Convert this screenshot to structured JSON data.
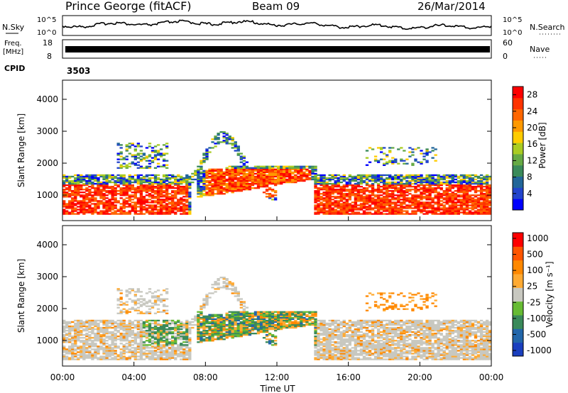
{
  "header": {
    "station": "Prince George (fitACF)",
    "beam": "Beam 09",
    "date": "26/Mar/2014"
  },
  "panels": {
    "sky_label": "N.Sky",
    "search_label": "N.Search",
    "freq_label_1": "Freq.",
    "freq_label_2": "[MHz]",
    "nave_label": "Nave",
    "cpid_label": "CPID",
    "cpid_value": "3503",
    "sky_ticks_left": [
      "10^5",
      "10^0"
    ],
    "sky_ticks_right": [
      "10^5",
      "10^0"
    ],
    "freq_ticks_left": [
      "18",
      "8"
    ],
    "nave_ticks_right": [
      "60",
      "0"
    ]
  },
  "colors": {
    "power": [
      "#0000ff",
      "#2244cc",
      "#226699",
      "#3a8a5a",
      "#66aa44",
      "#aacc22",
      "#ffcc00",
      "#ff9900",
      "#ff6600",
      "#ff3300",
      "#ff0000"
    ],
    "velocity": [
      "#1a3fbf",
      "#2266aa",
      "#3a8a5a",
      "#66bb33",
      "#c8c8c0",
      "#ffaa33",
      "#ff8800",
      "#ff5500",
      "#ff0000"
    ]
  },
  "chart_data": [
    {
      "type": "heatmap",
      "title": "Power",
      "ylabel": "Slant Range [km]",
      "yticks": [
        "1000",
        "2000",
        "3000",
        "4000"
      ],
      "ylim": [
        200,
        4600
      ],
      "colorbar_label": "Power [dB]",
      "colorbar_ticks": [
        "4",
        "8",
        "12",
        "16",
        "20",
        "24",
        "28"
      ],
      "colorbar_range": [
        0,
        30
      ]
    },
    {
      "type": "heatmap",
      "title": "Velocity",
      "ylabel": "Slant Range [km]",
      "yticks": [
        "1000",
        "2000",
        "3000",
        "4000"
      ],
      "ylim": [
        200,
        4600
      ],
      "colorbar_label": "Velocity [m s⁻¹]",
      "colorbar_ticks": [
        "1000",
        "500",
        "100",
        "25",
        "-25",
        "-100",
        "-500",
        "-1000"
      ],
      "xlabel": "Time UT",
      "xticks": [
        "00:00",
        "04:00",
        "08:00",
        "12:00",
        "16:00",
        "20:00",
        "00:00"
      ],
      "xlim_hours": [
        0,
        24
      ]
    }
  ]
}
